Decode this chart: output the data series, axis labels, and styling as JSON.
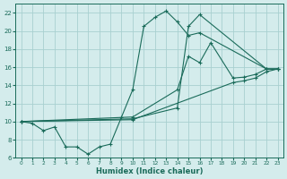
{
  "xlabel": "Humidex (Indice chaleur)",
  "background_color": "#d4ecec",
  "grid_color": "#a8d0d0",
  "line_color": "#1a6b5a",
  "xlim": [
    -0.5,
    23.5
  ],
  "ylim": [
    6,
    23
  ],
  "yticks": [
    6,
    8,
    10,
    12,
    14,
    16,
    18,
    20,
    22
  ],
  "xticks": [
    0,
    1,
    2,
    3,
    4,
    5,
    6,
    7,
    8,
    9,
    10,
    11,
    12,
    13,
    14,
    15,
    16,
    17,
    18,
    19,
    20,
    21,
    22,
    23
  ],
  "line1_x": [
    0,
    1,
    2,
    3,
    4,
    5,
    6,
    7,
    8,
    9,
    10,
    11,
    12,
    13,
    14,
    15,
    16,
    22,
    23
  ],
  "line1_y": [
    10,
    9.8,
    9.0,
    9.4,
    7.2,
    7.2,
    6.4,
    7.2,
    7.5,
    10.5,
    13.5,
    20.5,
    21.5,
    22.2,
    21.0,
    19.5,
    19.8,
    15.8,
    15.8
  ],
  "line2_x": [
    0,
    10,
    14,
    15,
    16,
    17,
    19,
    20,
    21,
    22,
    23
  ],
  "line2_y": [
    10,
    10.5,
    13.5,
    17.2,
    16.5,
    18.7,
    14.8,
    14.9,
    15.2,
    15.8,
    15.8
  ],
  "line3_x": [
    0,
    10,
    19,
    20,
    21,
    22,
    23
  ],
  "line3_y": [
    10,
    10.2,
    14.3,
    14.5,
    14.8,
    15.5,
    15.8
  ],
  "line4_x": [
    0,
    10,
    14,
    15,
    16,
    22,
    23
  ],
  "line4_y": [
    10,
    10.3,
    11.5,
    20.5,
    21.8,
    15.8,
    15.8
  ]
}
